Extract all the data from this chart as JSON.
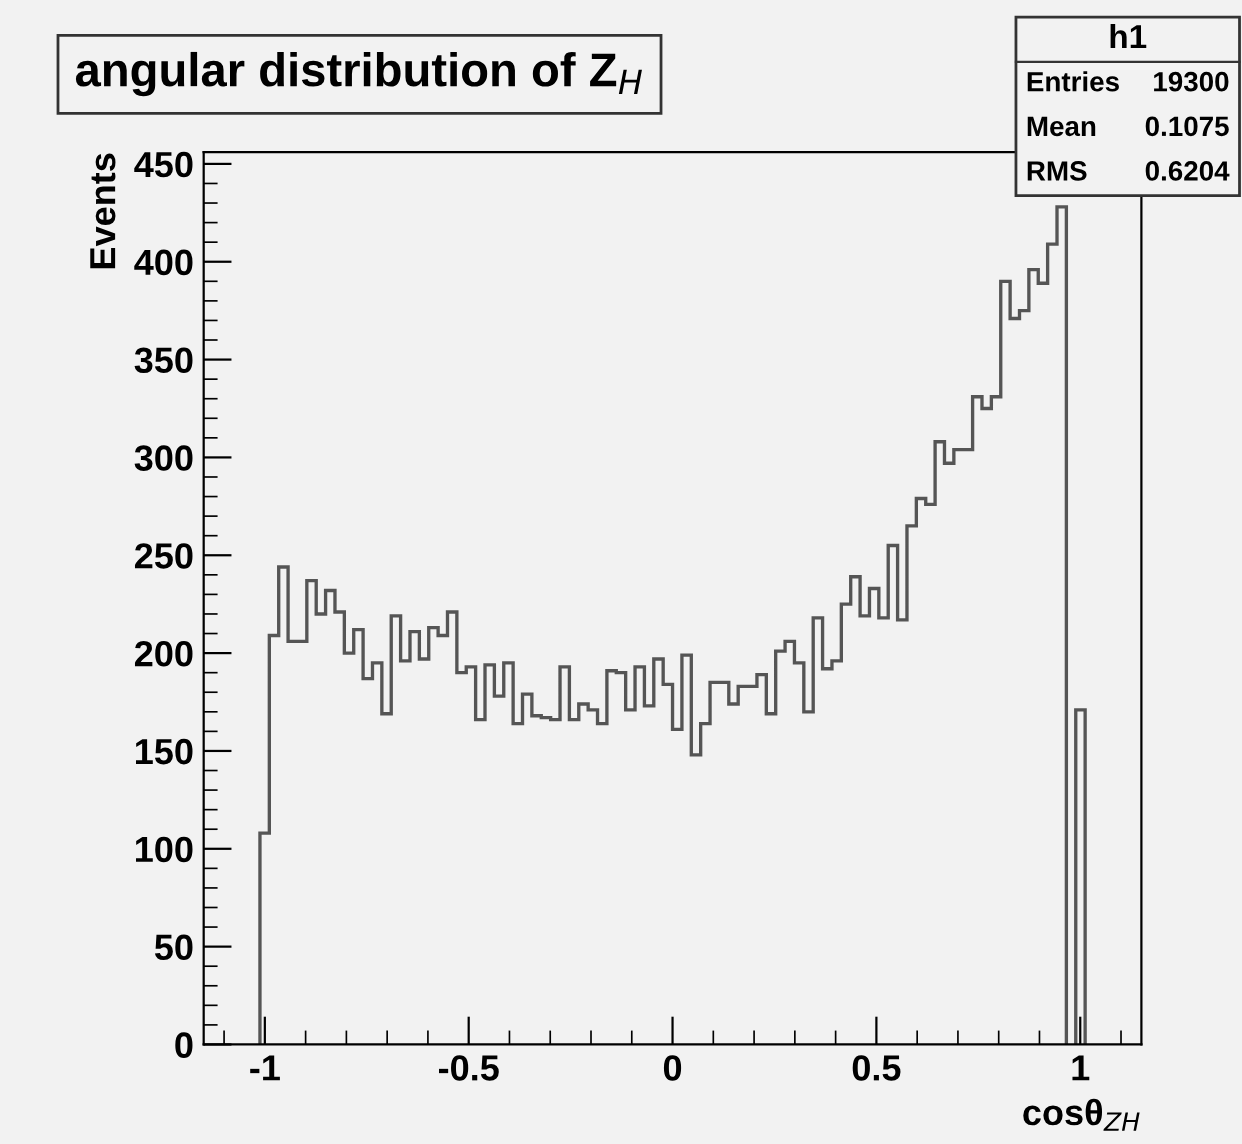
{
  "chart_data": {
    "type": "histogram",
    "title": "angular distribution of Z$_{H}$",
    "xlabel": "cosθ$_{ZH}$",
    "ylabel": "Events",
    "bins": [
      -1.012,
      -0.989,
      -0.966,
      -0.943,
      -0.92,
      -0.897,
      -0.874,
      -0.851,
      -0.828,
      -0.805,
      -0.782,
      -0.759,
      -0.736,
      -0.713,
      -0.69,
      -0.667,
      -0.644,
      -0.621,
      -0.598,
      -0.575,
      -0.552,
      -0.529,
      -0.506,
      -0.483,
      -0.46,
      -0.437,
      -0.414,
      -0.391,
      -0.368,
      -0.345,
      -0.322,
      -0.299,
      -0.276,
      -0.253,
      -0.23,
      -0.207,
      -0.184,
      -0.161,
      -0.138,
      -0.115,
      -0.092,
      -0.069,
      -0.046,
      -0.023,
      0.0,
      0.023,
      0.046,
      0.069,
      0.092,
      0.115,
      0.138,
      0.161,
      0.184,
      0.207,
      0.23,
      0.253,
      0.276,
      0.299,
      0.322,
      0.345,
      0.368,
      0.391,
      0.414,
      0.437,
      0.46,
      0.483,
      0.506,
      0.529,
      0.552,
      0.575,
      0.598,
      0.621,
      0.644,
      0.667,
      0.69,
      0.713,
      0.736,
      0.759,
      0.782,
      0.805,
      0.828,
      0.851,
      0.874,
      0.897,
      0.92,
      0.943,
      0.966,
      0.989,
      1.012
    ],
    "values": [
      108,
      209,
      244,
      206,
      206,
      237,
      220,
      232,
      221,
      200,
      212,
      187,
      195,
      169,
      219,
      196,
      211,
      197,
      213,
      209,
      221,
      190,
      193,
      166,
      194,
      178,
      195,
      164,
      179,
      168,
      167,
      166,
      193,
      166,
      174,
      171,
      164,
      191,
      190,
      171,
      193,
      173,
      197,
      184,
      161,
      199,
      148,
      164,
      185,
      185,
      174,
      183,
      183,
      189,
      169,
      201,
      206,
      195,
      170,
      218,
      192,
      196,
      225,
      239,
      219,
      233,
      218,
      255,
      217,
      265,
      279,
      276,
      308,
      297,
      304,
      304,
      331,
      325,
      331,
      390,
      371,
      375,
      396,
      389,
      409,
      428,
      null,
      171
    ],
    "color": "#555555",
    "xlim": [
      -1.15,
      1.15
    ],
    "xticks": [
      -1,
      -0.5,
      0,
      0.5,
      1
    ],
    "ylim": [
      0,
      456
    ],
    "yticks": [
      0,
      50,
      100,
      150,
      200,
      250,
      300,
      350,
      400,
      450
    ],
    "grid": false,
    "legend": false,
    "annotations": [
      "h1",
      "Entries 19300",
      "Mean 0.1075",
      "RMS 0.6204"
    ]
  }
}
